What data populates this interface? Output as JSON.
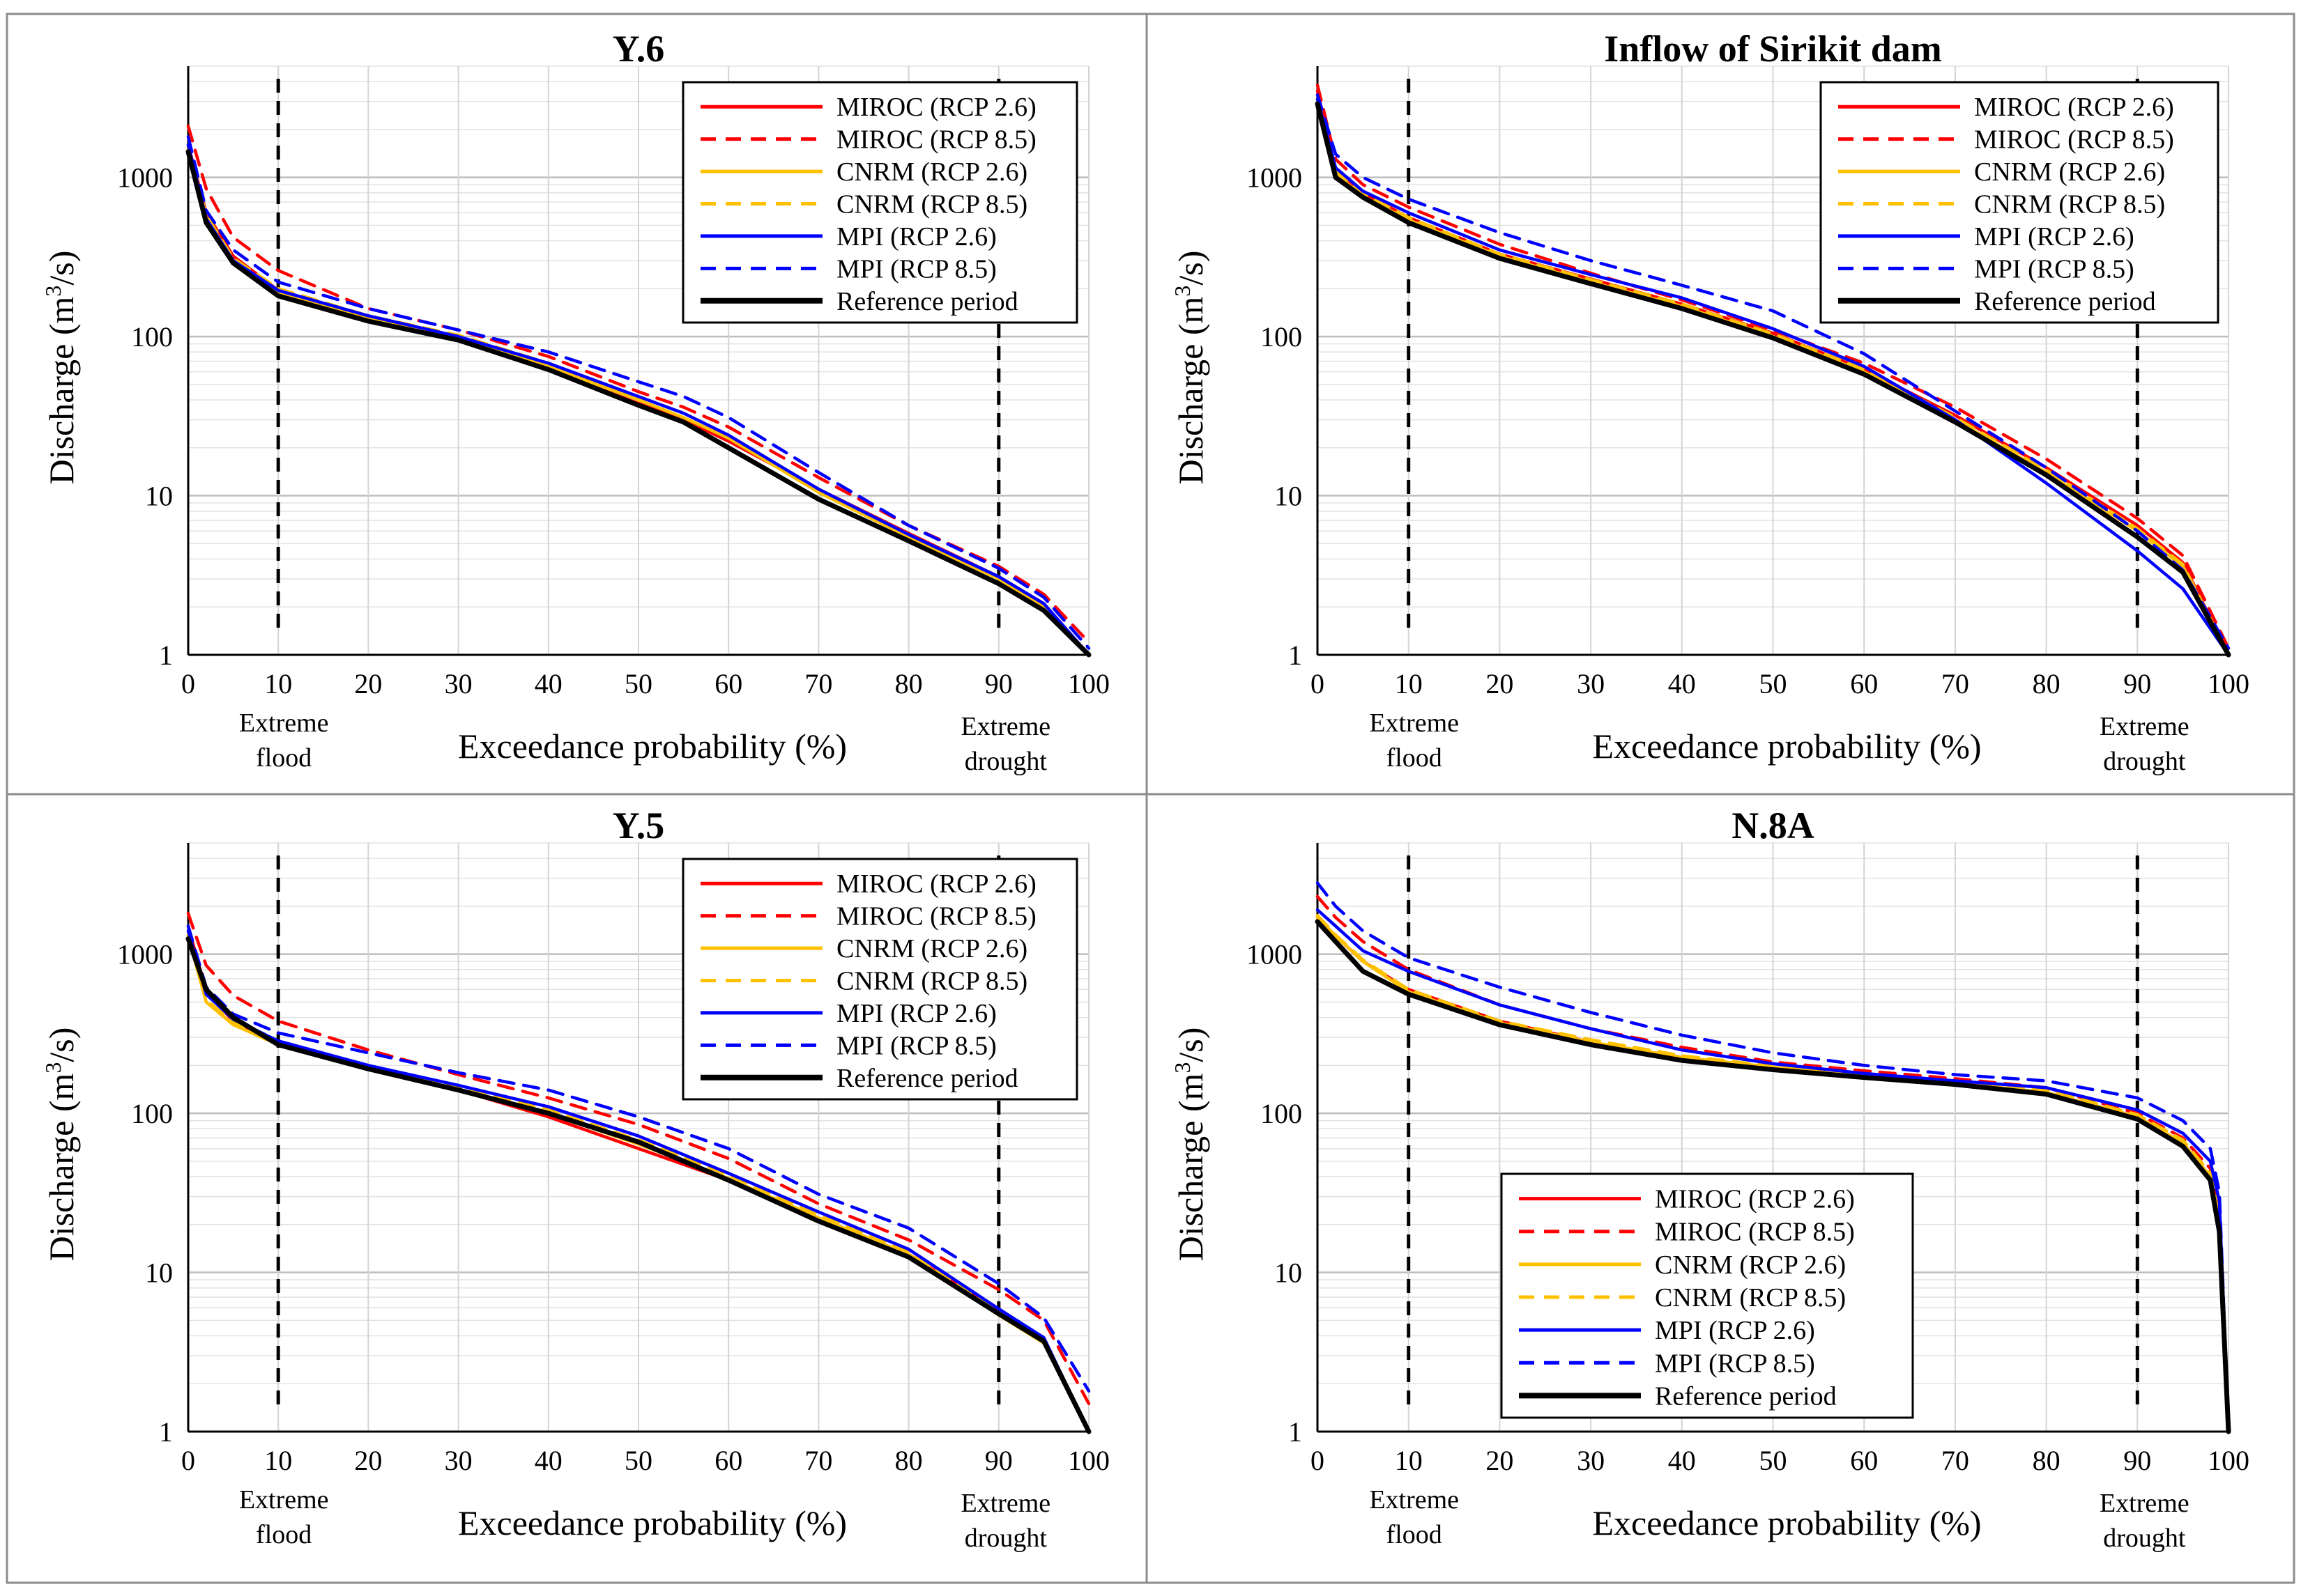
{
  "figure": {
    "shared": {
      "xlabel": "Exceedance probability (%)",
      "ylabel_main": "Discharge (m",
      "ylabel_sup": "3",
      "ylabel_end": "/s)",
      "x_ticks": [
        "0",
        "10",
        "20",
        "30",
        "40",
        "50",
        "60",
        "70",
        "80",
        "90",
        "100"
      ],
      "y_ticks": [
        "1",
        "10",
        "100",
        "1000"
      ],
      "annotations": {
        "flood_line1": "Extreme",
        "flood_line2": "flood",
        "drought_line1": "Extreme",
        "drought_line2": "drought"
      }
    }
  },
  "series_styles": [
    {
      "name": "MIROC (RCP 2.6)",
      "color": "#ff0000",
      "dash": "solid"
    },
    {
      "name": "MIROC (RCP 8.5)",
      "color": "#ff0000",
      "dash": "dashed"
    },
    {
      "name": "CNRM (RCP 2.6)",
      "color": "#ffc000",
      "dash": "solid"
    },
    {
      "name": "CNRM (RCP 8.5)",
      "color": "#ffc000",
      "dash": "dashed"
    },
    {
      "name": "MPI (RCP 2.6)",
      "color": "#0000ff",
      "dash": "solid"
    },
    {
      "name": "MPI (RCP 8.5)",
      "color": "#0000ff",
      "dash": "dashed"
    },
    {
      "name": "Reference period",
      "color": "#000000",
      "dash": "solid"
    }
  ],
  "chart_data": [
    {
      "type": "line",
      "title": "Y.6",
      "xlabel": "Exceedance probability (%)",
      "ylabel": "Discharge (m3/s)",
      "yscale": "log",
      "xlim": [
        0,
        100
      ],
      "ylim": [
        1,
        5000
      ],
      "legend_position": "top-right",
      "reference_lines_x": [
        10,
        90
      ],
      "x": [
        0,
        2,
        5,
        10,
        20,
        30,
        40,
        50,
        55,
        60,
        70,
        80,
        90,
        95,
        100
      ],
      "series": [
        {
          "name": "MIROC (RCP 2.6)",
          "values": [
            1600,
            600,
            320,
            195,
            130,
            98,
            62,
            38,
            30,
            22,
            11,
            5.8,
            3.1,
            2.1,
            1
          ]
        },
        {
          "name": "MIROC (RCP 8.5)",
          "values": [
            2100,
            850,
            420,
            260,
            150,
            110,
            75,
            45,
            36,
            27,
            13,
            6.5,
            3.6,
            2.4,
            1.2
          ]
        },
        {
          "name": "CNRM (RCP 2.6)",
          "values": [
            1500,
            560,
            300,
            190,
            130,
            98,
            65,
            40,
            31,
            23,
            10.5,
            5.5,
            3.0,
            2.0,
            1
          ]
        },
        {
          "name": "CNRM (RCP 8.5)",
          "values": [
            1550,
            580,
            310,
            200,
            135,
            102,
            68,
            42,
            33,
            24,
            11,
            5.7,
            3.1,
            2.1,
            1
          ]
        },
        {
          "name": "MPI (RCP 2.6)",
          "values": [
            1600,
            550,
            300,
            195,
            135,
            100,
            68,
            42,
            33,
            24,
            11,
            5.7,
            3.1,
            2.1,
            1
          ]
        },
        {
          "name": "MPI (RCP 8.5)",
          "values": [
            1800,
            620,
            350,
            220,
            150,
            110,
            80,
            52,
            42,
            31,
            14,
            6.5,
            3.5,
            2.3,
            1.1
          ]
        },
        {
          "name": "Reference period",
          "values": [
            1450,
            520,
            290,
            180,
            125,
            95,
            62,
            37,
            29,
            20,
            9.5,
            5.2,
            2.8,
            1.9,
            1
          ]
        }
      ]
    },
    {
      "type": "line",
      "title": "Inflow of Sirikit dam",
      "xlabel": "Exceedance probability (%)",
      "ylabel": "Discharge (m3/s)",
      "yscale": "log",
      "xlim": [
        0,
        100
      ],
      "ylim": [
        1,
        5000
      ],
      "legend_position": "top-right",
      "reference_lines_x": [
        10,
        90
      ],
      "x": [
        0,
        2,
        5,
        10,
        20,
        30,
        40,
        50,
        60,
        70,
        80,
        90,
        95,
        100
      ],
      "series": [
        {
          "name": "MIROC (RCP 2.6)",
          "values": [
            3500,
            1100,
            800,
            560,
            330,
            230,
            160,
            105,
            62,
            32,
            15,
            6.5,
            3.8,
            1
          ]
        },
        {
          "name": "MIROC (RCP 8.5)",
          "values": [
            3800,
            1300,
            900,
            650,
            380,
            250,
            170,
            110,
            68,
            36,
            17,
            7.2,
            4.2,
            1.1
          ]
        },
        {
          "name": "CNRM (RCP 2.6)",
          "values": [
            3000,
            1050,
            760,
            540,
            320,
            220,
            155,
            100,
            60,
            30,
            14,
            6.0,
            3.6,
            1
          ]
        },
        {
          "name": "CNRM (RCP 8.5)",
          "values": [
            3200,
            1100,
            790,
            560,
            330,
            228,
            160,
            104,
            62,
            31,
            14.5,
            6.2,
            3.7,
            1
          ]
        },
        {
          "name": "MPI (RCP 2.6)",
          "values": [
            3100,
            1150,
            820,
            600,
            350,
            245,
            175,
            112,
            65,
            30,
            12,
            4.5,
            2.6,
            1
          ]
        },
        {
          "name": "MPI (RCP 8.5)",
          "values": [
            3300,
            1400,
            1000,
            730,
            450,
            300,
            210,
            145,
            78,
            34,
            15,
            6.0,
            3.4,
            1.1
          ]
        },
        {
          "name": "Reference period",
          "values": [
            2900,
            1000,
            750,
            520,
            310,
            215,
            150,
            98,
            58,
            29,
            13.5,
            5.5,
            3.3,
            1
          ]
        }
      ]
    },
    {
      "type": "line",
      "title": "Y.5",
      "xlabel": "Exceedance probability (%)",
      "ylabel": "Discharge (m3/s)",
      "yscale": "log",
      "xlim": [
        0,
        100
      ],
      "ylim": [
        1,
        5000
      ],
      "legend_position": "top-right",
      "reference_lines_x": [
        10,
        90
      ],
      "x": [
        0,
        2,
        5,
        10,
        20,
        30,
        40,
        50,
        60,
        70,
        80,
        90,
        95,
        100
      ],
      "series": [
        {
          "name": "MIROC (RCP 2.6)",
          "values": [
            1500,
            580,
            380,
            270,
            195,
            140,
            95,
            60,
            38,
            22,
            13,
            5.8,
            3.8,
            1
          ]
        },
        {
          "name": "MIROC (RCP 8.5)",
          "values": [
            1800,
            850,
            550,
            380,
            250,
            175,
            125,
            85,
            52,
            27,
            16,
            7.8,
            5.0,
            1.5
          ]
        },
        {
          "name": "CNRM (RCP 2.6)",
          "values": [
            1300,
            500,
            360,
            270,
            190,
            140,
            100,
            64,
            39,
            22,
            13,
            5.4,
            3.6,
            1
          ]
        },
        {
          "name": "CNRM (RCP 8.5)",
          "values": [
            1350,
            520,
            370,
            280,
            200,
            145,
            105,
            68,
            41,
            23,
            13.5,
            5.6,
            3.8,
            1
          ]
        },
        {
          "name": "MPI (RCP 2.6)",
          "values": [
            1400,
            560,
            390,
            285,
            200,
            150,
            110,
            72,
            42,
            24,
            14,
            5.9,
            3.9,
            1
          ]
        },
        {
          "name": "MPI (RCP 8.5)",
          "values": [
            1500,
            620,
            420,
            320,
            240,
            180,
            140,
            95,
            60,
            31,
            19,
            8.5,
            5.2,
            1.8
          ]
        },
        {
          "name": "Reference period",
          "values": [
            1250,
            600,
            400,
            270,
            190,
            140,
            100,
            66,
            38,
            21,
            12.5,
            5.5,
            3.7,
            1
          ]
        }
      ]
    },
    {
      "type": "line",
      "title": "N.8A",
      "xlabel": "Exceedance probability (%)",
      "ylabel": "Discharge (m3/s)",
      "yscale": "log",
      "xlim": [
        0,
        100
      ],
      "ylim": [
        1,
        5000
      ],
      "legend_position": "bottom-left",
      "reference_lines_x": [
        10,
        90
      ],
      "x": [
        0,
        2,
        5,
        10,
        20,
        30,
        40,
        50,
        60,
        70,
        80,
        90,
        95,
        98,
        99,
        100
      ],
      "series": [
        {
          "name": "MIROC (RCP 2.6)",
          "values": [
            1700,
            1300,
            900,
            600,
            380,
            280,
            220,
            190,
            170,
            155,
            135,
            95,
            65,
            40,
            20,
            1
          ]
        },
        {
          "name": "MIROC (RCP 8.5)",
          "values": [
            2300,
            1700,
            1200,
            800,
            480,
            340,
            260,
            210,
            185,
            165,
            145,
            100,
            70,
            45,
            25,
            1
          ]
        },
        {
          "name": "CNRM (RCP 2.6)",
          "values": [
            1700,
            1300,
            900,
            580,
            370,
            280,
            225,
            195,
            170,
            155,
            135,
            95,
            65,
            40,
            20,
            1
          ]
        },
        {
          "name": "CNRM (RCP 8.5)",
          "values": [
            1750,
            1320,
            920,
            600,
            380,
            290,
            230,
            198,
            175,
            158,
            140,
            98,
            68,
            42,
            22,
            1
          ]
        },
        {
          "name": "MPI (RCP 2.6)",
          "values": [
            1900,
            1500,
            1050,
            780,
            480,
            340,
            250,
            205,
            178,
            160,
            145,
            105,
            75,
            50,
            28,
            1
          ]
        },
        {
          "name": "MPI (RCP 8.5)",
          "values": [
            2800,
            2000,
            1400,
            950,
            620,
            430,
            310,
            240,
            200,
            175,
            160,
            125,
            90,
            60,
            32,
            1
          ]
        },
        {
          "name": "Reference period",
          "values": [
            1600,
            1200,
            780,
            560,
            360,
            270,
            215,
            188,
            168,
            152,
            132,
            92,
            62,
            38,
            18,
            1
          ]
        }
      ]
    }
  ]
}
